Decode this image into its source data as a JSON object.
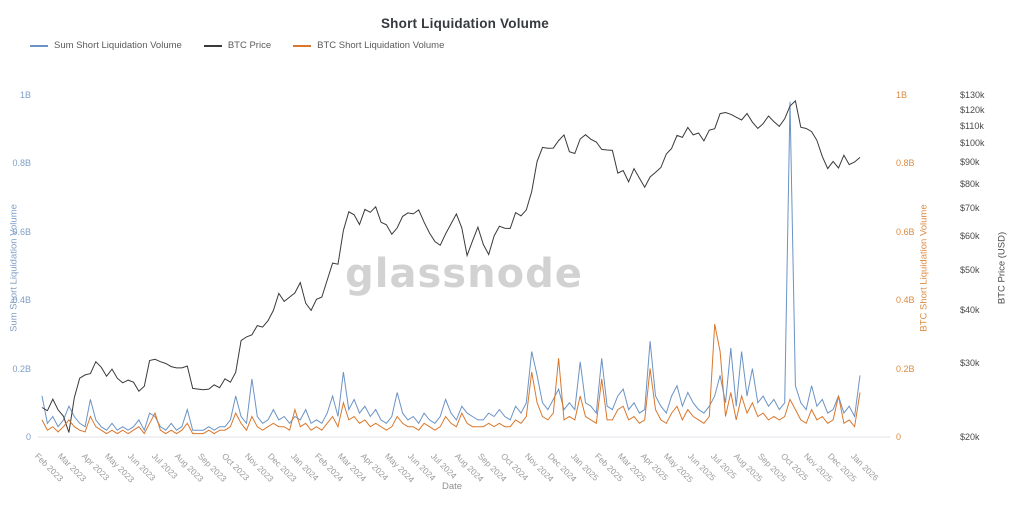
{
  "watermark": "glassnode",
  "colors": {
    "sum_short_blue": "#6b93c5",
    "btc_price_dark": "#3a3a3a",
    "btc_short_orange": "#d9782d",
    "baseline_gray": "#dfe3e8",
    "left_tick_text": "#7e9fc5",
    "orange_tick_text": "#dd8b43",
    "price_tick_text": "#4a4a4a",
    "x_tick_text": "#9b9b9b"
  },
  "chart_data": {
    "type": "line",
    "title": "Short Liquidation Volume",
    "xlabel": "Date",
    "x_resolution": "weekly",
    "x_start": "Feb 2023",
    "x_end": "Jan 2026",
    "grid": "off",
    "legend_position": "top-left",
    "x_tick_labels": [
      "Feb 2023",
      "Mar 2023",
      "Apr 2023",
      "May 2023",
      "Jun 2023",
      "Jul 2023",
      "Aug 2023",
      "Sep 2023",
      "Oct 2023",
      "Nov 2023",
      "Dec 2023",
      "Jan 2024",
      "Feb 2024",
      "Mar 2024",
      "Apr 2024",
      "May 2024",
      "Jun 2024",
      "Jul 2024",
      "Aug 2024",
      "Sep 2024",
      "Oct 2024",
      "Nov 2024",
      "Dec 2024",
      "Jan 2025",
      "Feb 2025",
      "Mar 2025",
      "Apr 2025",
      "May 2025",
      "Jun 2025",
      "Jul 2025",
      "Aug 2025",
      "Sep 2025",
      "Oct 2025",
      "Nov 2025",
      "Dec 2025",
      "Jan 2026"
    ],
    "volume_axis": {
      "left_label": "Sum Short Liquidation Volume",
      "right_label": "BTC Short Liquidation Volume",
      "ticks": [
        "0",
        "0.2B",
        "0.4B",
        "0.6B",
        "0.8B",
        "1B"
      ],
      "tick_values_B": [
        0,
        0.2,
        0.4,
        0.6,
        0.8,
        1.0
      ],
      "range_B": [
        0,
        1
      ]
    },
    "price_axis": {
      "label": "BTC Price (USD)",
      "scale": "log",
      "ticks": [
        "$20k",
        "$30k",
        "$40k",
        "$50k",
        "$60k",
        "$70k",
        "$80k",
        "$90k",
        "$100k",
        "$110k",
        "$120k",
        "$130k"
      ],
      "tick_values_usd_k": [
        20,
        30,
        40,
        50,
        60,
        70,
        80,
        90,
        100,
        110,
        120,
        130
      ],
      "range_usd_k": [
        20,
        130
      ]
    },
    "series": [
      {
        "name": "Sum Short Liquidation Volume",
        "axis": "volume",
        "unit": "billion USD",
        "color": "#6b93c5",
        "values": [
          0.12,
          0.04,
          0.06,
          0.03,
          0.05,
          0.09,
          0.06,
          0.04,
          0.03,
          0.11,
          0.05,
          0.03,
          0.02,
          0.04,
          0.02,
          0.03,
          0.02,
          0.03,
          0.05,
          0.02,
          0.07,
          0.06,
          0.03,
          0.02,
          0.04,
          0.02,
          0.03,
          0.08,
          0.02,
          0.02,
          0.02,
          0.03,
          0.02,
          0.03,
          0.03,
          0.05,
          0.12,
          0.06,
          0.04,
          0.17,
          0.06,
          0.04,
          0.05,
          0.08,
          0.05,
          0.06,
          0.04,
          0.06,
          0.05,
          0.08,
          0.04,
          0.05,
          0.04,
          0.07,
          0.12,
          0.06,
          0.19,
          0.08,
          0.11,
          0.07,
          0.09,
          0.06,
          0.08,
          0.05,
          0.04,
          0.06,
          0.13,
          0.07,
          0.05,
          0.06,
          0.04,
          0.07,
          0.05,
          0.04,
          0.06,
          0.11,
          0.07,
          0.05,
          0.09,
          0.07,
          0.06,
          0.05,
          0.05,
          0.07,
          0.06,
          0.08,
          0.06,
          0.05,
          0.09,
          0.07,
          0.1,
          0.25,
          0.18,
          0.1,
          0.08,
          0.11,
          0.14,
          0.08,
          0.1,
          0.08,
          0.22,
          0.1,
          0.09,
          0.07,
          0.23,
          0.09,
          0.08,
          0.12,
          0.14,
          0.08,
          0.1,
          0.07,
          0.08,
          0.28,
          0.12,
          0.09,
          0.07,
          0.12,
          0.15,
          0.09,
          0.13,
          0.1,
          0.08,
          0.07,
          0.09,
          0.12,
          0.18,
          0.1,
          0.26,
          0.09,
          0.25,
          0.12,
          0.2,
          0.1,
          0.12,
          0.09,
          0.11,
          0.08,
          0.1,
          0.98,
          0.15,
          0.1,
          0.08,
          0.15,
          0.09,
          0.11,
          0.07,
          0.08,
          0.12,
          0.07,
          0.09,
          0.06,
          0.18
        ]
      },
      {
        "name": "BTC Price",
        "axis": "price",
        "unit": "thousand USD",
        "color": "#3a3a3a",
        "values": [
          23.5,
          23.1,
          24.6,
          23.2,
          22.4,
          20.5,
          24.8,
          27.6,
          28.1,
          28.3,
          30.2,
          29.3,
          27.9,
          29.0,
          27.6,
          26.9,
          27.3,
          27.0,
          25.7,
          26.4,
          30.4,
          30.6,
          30.2,
          29.9,
          29.4,
          29.2,
          29.2,
          29.5,
          26.1,
          26.0,
          25.9,
          26.0,
          26.6,
          26.2,
          27.5,
          27.0,
          28.5,
          33.9,
          34.6,
          35.0,
          36.8,
          36.5,
          37.8,
          40.0,
          43.9,
          42.0,
          43.0,
          44.0,
          46.6,
          41.6,
          40.0,
          42.5,
          43.0,
          47.2,
          51.8,
          51.5,
          62.0,
          68.6,
          67.5,
          64.0,
          69.5,
          68.4,
          70.5,
          64.8,
          63.9,
          60.7,
          62.8,
          66.9,
          68.2,
          67.8,
          69.3,
          64.8,
          61.1,
          58.3,
          57.1,
          60.8,
          64.2,
          67.8,
          62.8,
          54.0,
          58.5,
          63.1,
          57.4,
          54.3,
          60.1,
          63.4,
          62.7,
          62.6,
          68.3,
          67.1,
          69.3,
          76.6,
          90.4,
          97.6,
          97.1,
          97.2,
          101.3,
          104.5,
          95.3,
          94.4,
          102.2,
          104.6,
          102.0,
          100.5,
          96.5,
          96.2,
          96.0,
          84.8,
          86.0,
          80.8,
          86.9,
          82.5,
          78.5,
          83.0,
          85.1,
          87.4,
          94.1,
          97.0,
          104.2,
          103.1,
          108.9,
          104.5,
          105.6,
          101.1,
          107.2,
          108.1,
          117.4,
          118.1,
          117.0,
          115.1,
          113.4,
          117.5,
          112.0,
          108.3,
          111.1,
          115.9,
          112.4,
          109.5,
          114.1,
          122.4,
          125.9,
          109.0,
          108.2,
          106.4,
          101.4,
          92.9,
          86.9,
          90.4,
          87.2,
          93.5,
          88.8,
          90.1,
          92.4
        ]
      },
      {
        "name": "BTC Short Liquidation Volume",
        "axis": "volume",
        "unit": "billion USD",
        "color": "#d9782d",
        "values": [
          0.05,
          0.02,
          0.03,
          0.015,
          0.03,
          0.05,
          0.03,
          0.02,
          0.015,
          0.06,
          0.03,
          0.02,
          0.01,
          0.02,
          0.01,
          0.02,
          0.01,
          0.02,
          0.03,
          0.01,
          0.04,
          0.07,
          0.02,
          0.01,
          0.02,
          0.01,
          0.02,
          0.04,
          0.01,
          0.01,
          0.01,
          0.02,
          0.01,
          0.02,
          0.02,
          0.03,
          0.07,
          0.04,
          0.02,
          0.06,
          0.03,
          0.02,
          0.03,
          0.04,
          0.03,
          0.03,
          0.02,
          0.08,
          0.03,
          0.04,
          0.02,
          0.03,
          0.02,
          0.04,
          0.06,
          0.03,
          0.1,
          0.05,
          0.06,
          0.04,
          0.05,
          0.03,
          0.04,
          0.03,
          0.02,
          0.03,
          0.06,
          0.04,
          0.03,
          0.03,
          0.02,
          0.04,
          0.03,
          0.02,
          0.03,
          0.06,
          0.04,
          0.03,
          0.07,
          0.04,
          0.03,
          0.03,
          0.03,
          0.04,
          0.03,
          0.04,
          0.03,
          0.03,
          0.05,
          0.04,
          0.06,
          0.19,
          0.1,
          0.06,
          0.05,
          0.07,
          0.23,
          0.05,
          0.06,
          0.05,
          0.12,
          0.06,
          0.05,
          0.04,
          0.17,
          0.05,
          0.05,
          0.08,
          0.09,
          0.05,
          0.06,
          0.04,
          0.05,
          0.2,
          0.08,
          0.05,
          0.04,
          0.07,
          0.09,
          0.05,
          0.08,
          0.06,
          0.05,
          0.04,
          0.06,
          0.33,
          0.25,
          0.06,
          0.13,
          0.05,
          0.12,
          0.07,
          0.1,
          0.06,
          0.07,
          0.05,
          0.06,
          0.05,
          0.06,
          0.11,
          0.08,
          0.05,
          0.04,
          0.08,
          0.05,
          0.06,
          0.04,
          0.05,
          0.12,
          0.04,
          0.05,
          0.03,
          0.13
        ]
      }
    ]
  }
}
